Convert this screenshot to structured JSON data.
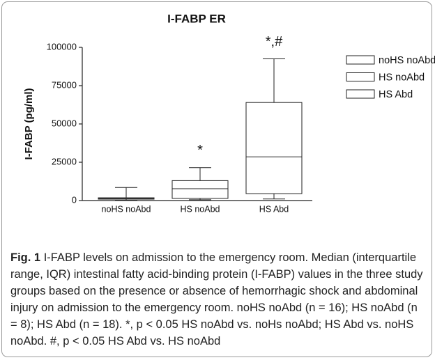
{
  "chart_data": {
    "type": "box",
    "title": "I-FABP ER",
    "y_label": "I-FABP (pg/ml)",
    "categories": [
      "noHS noAbd",
      "HS noAbd",
      "HS Abd"
    ],
    "min": [
      200,
      500,
      1000
    ],
    "q1": [
      900,
      1400,
      4500
    ],
    "median": [
      1300,
      7700,
      28500
    ],
    "q3": [
      1800,
      13000,
      64000
    ],
    "max": [
      8500,
      21500,
      92500
    ],
    "color": "#ffffff",
    "stroke": "#222222",
    "ylim": [
      0,
      100000
    ],
    "yticks": [
      0,
      25000,
      50000,
      75000,
      100000
    ],
    "grid": false,
    "legend": "top-right",
    "annotations": [
      {
        "text": "*",
        "category": "HS noAbd"
      },
      {
        "text": "*,#",
        "category": "HS Abd"
      }
    ]
  },
  "caption": {
    "label": "Fig. 1",
    "text": "I-FABP levels on admission to the emergency room. Median (interquartile range, IQR) intestinal fatty acid-binding protein (I-FABP) values in the three study groups based on the presence or absence of hemorrhagic shock and abdominal injury on admission to the emergency room. noHS noAbd (n = 16); HS noAbd (n = 8); HS Abd (n = 18). *, p < 0.05 HS noAbd vs. noHs noAbd; HS Abd vs. noHS noAbd. #, p < 0.05 HS Abd vs. HS noAbd"
  }
}
